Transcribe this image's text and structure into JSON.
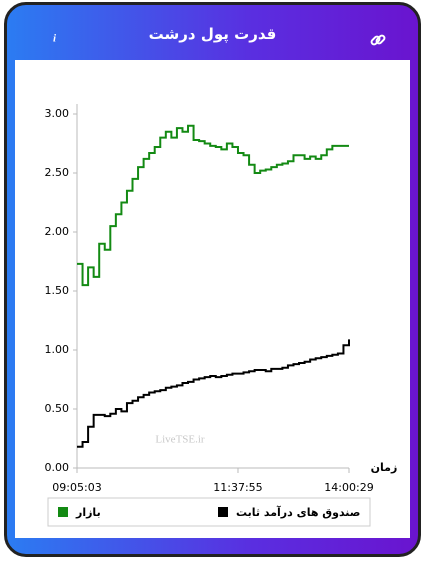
{
  "chart_data": {
    "type": "line",
    "title": "قدرت پول درشت",
    "x_label": "زمان",
    "watermark": "LiveTSE.ir",
    "x": [
      "09:05:03",
      null,
      null,
      null,
      null,
      null,
      null,
      null,
      null,
      null,
      null,
      null,
      null,
      null,
      null,
      null,
      null,
      null,
      null,
      null,
      null,
      null,
      null,
      null,
      null,
      null,
      null,
      null,
      null,
      "11:37:55",
      null,
      null,
      null,
      null,
      null,
      null,
      null,
      null,
      null,
      null,
      null,
      null,
      null,
      null,
      null,
      null,
      null,
      null,
      null,
      "14:00:29"
    ],
    "series": [
      {
        "name": "بازار",
        "color": "#138a13",
        "values": [
          1.73,
          1.55,
          1.7,
          1.62,
          1.9,
          1.85,
          2.05,
          2.15,
          2.25,
          2.35,
          2.45,
          2.55,
          2.62,
          2.67,
          2.72,
          2.8,
          2.85,
          2.8,
          2.88,
          2.85,
          2.9,
          2.78,
          2.77,
          2.75,
          2.73,
          2.72,
          2.7,
          2.75,
          2.72,
          2.67,
          2.65,
          2.57,
          2.5,
          2.52,
          2.53,
          2.55,
          2.57,
          2.58,
          2.6,
          2.65,
          2.65,
          2.62,
          2.64,
          2.62,
          2.65,
          2.7,
          2.73,
          2.73,
          2.73,
          2.73
        ]
      },
      {
        "name": "صندوق های درآمد ثابت",
        "color": "#000000",
        "values": [
          0.18,
          0.22,
          0.35,
          0.45,
          0.45,
          0.44,
          0.46,
          0.5,
          0.48,
          0.55,
          0.57,
          0.6,
          0.62,
          0.64,
          0.65,
          0.66,
          0.68,
          0.69,
          0.7,
          0.72,
          0.73,
          0.75,
          0.76,
          0.77,
          0.78,
          0.77,
          0.78,
          0.79,
          0.8,
          0.8,
          0.81,
          0.82,
          0.83,
          0.83,
          0.82,
          0.84,
          0.84,
          0.85,
          0.87,
          0.88,
          0.89,
          0.9,
          0.92,
          0.93,
          0.94,
          0.95,
          0.96,
          0.97,
          1.04,
          1.09
        ]
      }
    ],
    "ylim": [
      0,
      3
    ],
    "yticks": [
      {
        "value": 0,
        "label": "0.00"
      },
      {
        "value": 0.5,
        "label": "0.50"
      },
      {
        "value": 1,
        "label": "1.00"
      },
      {
        "value": 1.5,
        "label": "1.50"
      },
      {
        "value": 2,
        "label": "2.00"
      },
      {
        "value": 2.5,
        "label": "2.50"
      },
      {
        "value": 3,
        "label": "3.00"
      }
    ],
    "grid": false
  }
}
